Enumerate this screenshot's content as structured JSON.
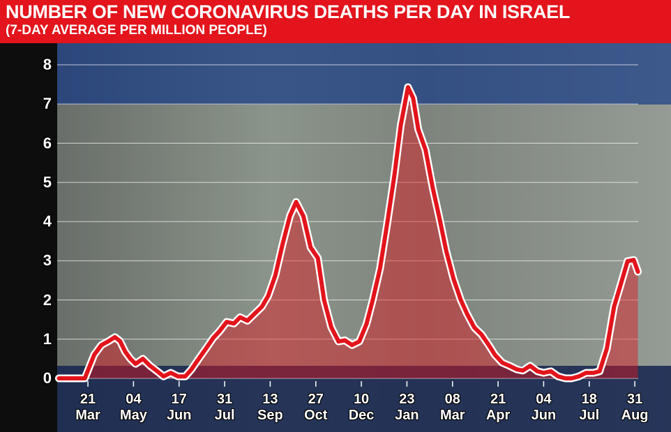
{
  "chart_data": {
    "type": "line",
    "title": "NUMBER OF NEW CORONAVIRUS DEATHS PER DAY IN ISRAEL",
    "subtitle": "(7-DAY AVERAGE PER MILLION PEOPLE)",
    "x": [
      -28,
      -3,
      6,
      13,
      20,
      26,
      31,
      36,
      41,
      46,
      53,
      60,
      67,
      73,
      80,
      87,
      94,
      100,
      107,
      114,
      121,
      127,
      134,
      141,
      147,
      154,
      161,
      168,
      174,
      181,
      188,
      195,
      201,
      208,
      215,
      222,
      228,
      235,
      242,
      248,
      255,
      262,
      269,
      275,
      282,
      289,
      296,
      302,
      309,
      314,
      319,
      326,
      333,
      339,
      346,
      353,
      360,
      366,
      373,
      380,
      387,
      393,
      400,
      407,
      414,
      420,
      427,
      434,
      440,
      447,
      454,
      461,
      467,
      474,
      481,
      488,
      494,
      501,
      508,
      514,
      521,
      527,
      531
    ],
    "values": [
      0,
      0,
      0.6,
      0.85,
      0.95,
      1.05,
      0.95,
      0.68,
      0.5,
      0.37,
      0.5,
      0.32,
      0.18,
      0.05,
      0.14,
      0.05,
      0.05,
      0.23,
      0.5,
      0.76,
      1.03,
      1.2,
      1.44,
      1.4,
      1.56,
      1.47,
      1.65,
      1.83,
      2.1,
      2.63,
      3.43,
      4.14,
      4.5,
      4.14,
      3.34,
      3.07,
      2.0,
      1.3,
      0.94,
      0.97,
      0.85,
      0.94,
      1.39,
      2.0,
      2.8,
      3.96,
      5.2,
      6.45,
      7.43,
      7.15,
      6.35,
      5.83,
      4.85,
      4.14,
      3.25,
      2.54,
      2.0,
      1.65,
      1.3,
      1.12,
      0.85,
      0.6,
      0.4,
      0.32,
      0.23,
      0.2,
      0.32,
      0.18,
      0.14,
      0.18,
      0.05,
      0,
      0,
      0.05,
      0.14,
      0.14,
      0.18,
      0.76,
      1.83,
      2.36,
      2.99,
      3.02,
      2.72
    ],
    "color": "#e3141c",
    "xlim": [
      -30,
      535
    ],
    "xticks": [
      {
        "value": 0,
        "label": "21\nMar"
      },
      {
        "value": 44,
        "label": "04\nMay"
      },
      {
        "value": 88,
        "label": "17\nJun"
      },
      {
        "value": 132,
        "label": "31\nJul"
      },
      {
        "value": 176,
        "label": "13\nSep"
      },
      {
        "value": 220,
        "label": "27\nOct"
      },
      {
        "value": 264,
        "label": "10\nDec"
      },
      {
        "value": 308,
        "label": "23\nJan"
      },
      {
        "value": 352,
        "label": "08\nMar"
      },
      {
        "value": 396,
        "label": "21\nApr"
      },
      {
        "value": 440,
        "label": "04\nJun"
      },
      {
        "value": 484,
        "label": "18\nJul"
      },
      {
        "value": 528,
        "label": "31\nAug"
      }
    ],
    "ylim": [
      0,
      8
    ],
    "yticks": [
      0,
      1,
      2,
      3,
      4,
      5,
      6,
      7,
      8
    ],
    "grid": true
  }
}
